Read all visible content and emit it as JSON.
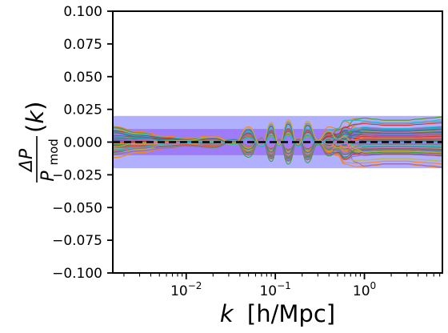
{
  "chart_data": {
    "type": "line",
    "title": "",
    "xlabel": {
      "var": "k",
      "unit": "[h/Mpc]",
      "text": "k [h/Mpc]"
    },
    "ylabel": {
      "text": "ΔP / P_mod (k)",
      "num": "ΔP",
      "den_base": "P",
      "den_sub": "mod",
      "suffix": "(k)"
    },
    "xscale": "log",
    "xlim": [
      0.0015,
      7.5
    ],
    "ylim": [
      -0.1,
      0.1
    ],
    "yticks": [
      -0.1,
      -0.075,
      -0.05,
      -0.025,
      0.0,
      0.025,
      0.05,
      0.075,
      0.1
    ],
    "ytick_labels": [
      "−0.100",
      "−0.075",
      "−0.050",
      "−0.025",
      "0.000",
      "0.025",
      "0.050",
      "0.075",
      "0.100"
    ],
    "xticks": [
      0.01,
      0.1,
      1
    ],
    "xtick_labels": [
      {
        "base": "10",
        "exp": "−2"
      },
      {
        "base": "10",
        "exp": "−1"
      },
      {
        "base": "10",
        "exp": "0"
      }
    ],
    "bands": [
      {
        "ymin": -0.02,
        "ymax": 0.02,
        "color": "#7b7bff",
        "opacity": 0.6
      },
      {
        "ymin": -0.01,
        "ymax": 0.01,
        "color": "#8a3cf0",
        "opacity": 0.45
      }
    ],
    "reference_line": {
      "y": 0.0,
      "style": "dashed",
      "color": "#000000"
    },
    "n_series": 60,
    "series_template": {
      "x": [
        0.0015,
        0.003,
        0.006,
        0.01,
        0.02,
        0.035,
        0.05,
        0.07,
        0.09,
        0.11,
        0.14,
        0.18,
        0.23,
        0.3,
        0.4,
        0.5,
        0.6,
        0.8,
        1.0,
        1.3,
        1.7,
        2.2,
        3.0,
        4.0,
        5.5,
        7.5
      ],
      "base": [
        0.0,
        0.0,
        0.0,
        0.0,
        0.0,
        0.0,
        0.0,
        0.0,
        0.0,
        0.0,
        0.0,
        0.0,
        0.0,
        0.0,
        0.0,
        0.0,
        0.0,
        0.0,
        0.0,
        0.0,
        0.0,
        0.0,
        0.0,
        0.0,
        0.0,
        0.0
      ],
      "oscillation": [
        0.0,
        0.0,
        0.0,
        0.0,
        0.002,
        0.004,
        0.006,
        0.008,
        0.009,
        0.007,
        0.011,
        0.008,
        0.009,
        0.005,
        0.001,
        0.004,
        0.002,
        0.0,
        0.0,
        0.0,
        0.0,
        0.0,
        0.0,
        0.0,
        0.0,
        0.0
      ],
      "spread_amplitude": [
        0.012,
        0.009,
        0.006,
        0.004,
        0.003,
        0.004,
        0.006,
        0.005,
        0.006,
        0.005,
        0.006,
        0.006,
        0.007,
        0.007,
        0.013,
        0.02,
        0.022,
        0.023,
        0.022,
        0.021,
        0.02,
        0.02,
        0.02,
        0.021,
        0.022,
        0.023
      ]
    },
    "colors": [
      "#1f77b4",
      "#ff7f0e",
      "#2ca02c",
      "#d62728",
      "#9467bd",
      "#8c564b",
      "#e377c2",
      "#7f7f7f",
      "#bcbd22",
      "#17becf"
    ]
  }
}
